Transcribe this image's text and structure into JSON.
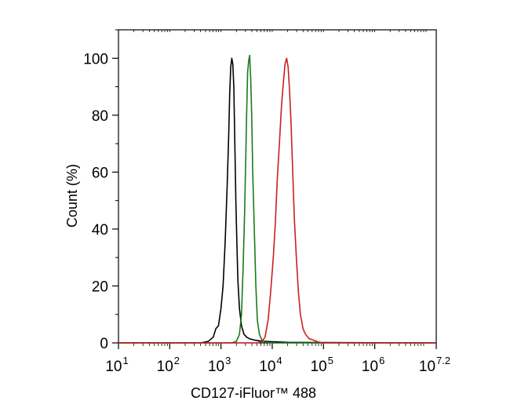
{
  "chart_data": {
    "type": "line",
    "title": "",
    "xlabel": "CD127-iFluor™ 488",
    "ylabel": "Count  (%)",
    "x_scale": "log10",
    "xlim": [
      1,
      7.2
    ],
    "ylim": [
      0,
      110
    ],
    "x_ticks": [
      {
        "base": "10",
        "exp": "1",
        "value": 1
      },
      {
        "base": "10",
        "exp": "2",
        "value": 2
      },
      {
        "base": "10",
        "exp": "3",
        "value": 3
      },
      {
        "base": "10",
        "exp": "4",
        "value": 4
      },
      {
        "base": "10",
        "exp": "5",
        "value": 5
      },
      {
        "base": "10",
        "exp": "6",
        "value": 6
      },
      {
        "base": "10",
        "exp": "7.2",
        "value": 7.2
      }
    ],
    "y_ticks": [
      "0",
      "20",
      "40",
      "60",
      "80",
      "100"
    ],
    "grid": false,
    "legend": "none",
    "series": [
      {
        "color": "#000000",
        "points": [
          [
            1.0,
            0
          ],
          [
            2.6,
            0
          ],
          [
            2.75,
            0.5
          ],
          [
            2.85,
            2
          ],
          [
            2.9,
            5
          ],
          [
            2.95,
            6
          ],
          [
            3.0,
            12
          ],
          [
            3.04,
            20
          ],
          [
            3.08,
            35
          ],
          [
            3.12,
            55
          ],
          [
            3.15,
            72
          ],
          [
            3.17,
            88
          ],
          [
            3.19,
            97
          ],
          [
            3.21,
            100
          ],
          [
            3.23,
            98
          ],
          [
            3.25,
            90
          ],
          [
            3.27,
            70
          ],
          [
            3.29,
            50
          ],
          [
            3.31,
            35
          ],
          [
            3.33,
            22
          ],
          [
            3.36,
            12
          ],
          [
            3.4,
            6
          ],
          [
            3.45,
            3
          ],
          [
            3.5,
            2
          ],
          [
            3.55,
            1.5
          ],
          [
            3.65,
            1
          ],
          [
            3.8,
            0.6
          ],
          [
            4.0,
            0.4
          ],
          [
            4.3,
            0.2
          ],
          [
            5.0,
            0.1
          ],
          [
            7.2,
            0
          ]
        ]
      },
      {
        "color": "#1a7a1a",
        "points": [
          [
            1.0,
            0
          ],
          [
            3.2,
            0
          ],
          [
            3.3,
            0.5
          ],
          [
            3.36,
            3
          ],
          [
            3.4,
            10
          ],
          [
            3.43,
            25
          ],
          [
            3.46,
            45
          ],
          [
            3.48,
            62
          ],
          [
            3.5,
            80
          ],
          [
            3.52,
            95
          ],
          [
            3.54,
            99
          ],
          [
            3.56,
            101
          ],
          [
            3.58,
            93
          ],
          [
            3.6,
            80
          ],
          [
            3.62,
            60
          ],
          [
            3.65,
            40
          ],
          [
            3.68,
            20
          ],
          [
            3.71,
            8
          ],
          [
            3.75,
            3
          ],
          [
            3.8,
            1
          ],
          [
            3.85,
            0.3
          ],
          [
            4.0,
            0
          ],
          [
            7.2,
            0
          ]
        ]
      },
      {
        "color": "#cc1e1e",
        "points": [
          [
            1.0,
            0
          ],
          [
            3.7,
            0
          ],
          [
            3.8,
            0.5
          ],
          [
            3.86,
            2
          ],
          [
            3.92,
            8
          ],
          [
            3.97,
            18
          ],
          [
            4.02,
            30
          ],
          [
            4.06,
            42
          ],
          [
            4.1,
            58
          ],
          [
            4.14,
            70
          ],
          [
            4.18,
            83
          ],
          [
            4.22,
            92
          ],
          [
            4.25,
            98
          ],
          [
            4.28,
            100
          ],
          [
            4.31,
            97
          ],
          [
            4.34,
            88
          ],
          [
            4.37,
            76
          ],
          [
            4.4,
            60
          ],
          [
            4.43,
            44
          ],
          [
            4.47,
            30
          ],
          [
            4.51,
            18
          ],
          [
            4.55,
            10
          ],
          [
            4.6,
            5
          ],
          [
            4.65,
            3
          ],
          [
            4.72,
            1.5
          ],
          [
            4.8,
            1
          ],
          [
            4.9,
            0.3
          ],
          [
            5.0,
            0
          ],
          [
            7.2,
            0
          ]
        ]
      }
    ]
  }
}
